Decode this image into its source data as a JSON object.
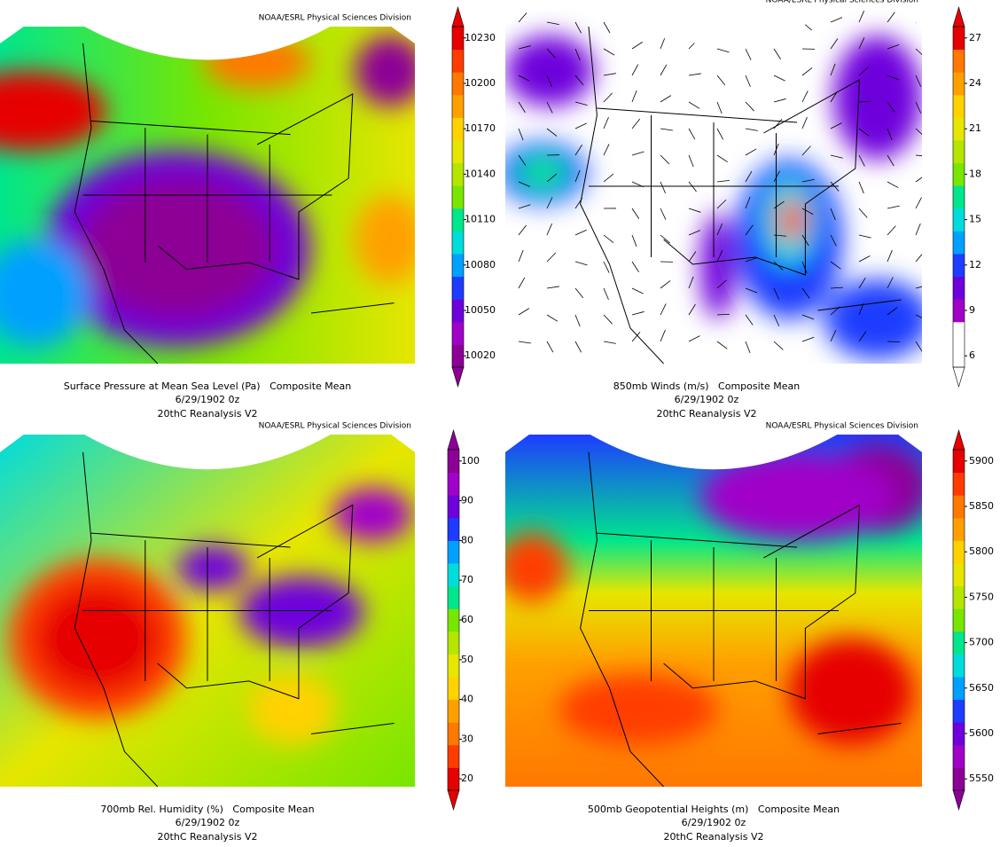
{
  "panels": [
    {
      "credit": "NOAA/ESRL Physical Sciences Division",
      "title": "Surface Pressure at Mean Sea Level (Pa)   Composite Mean",
      "date": "6/29/1902 0z",
      "source": "20thC Reanalysis V2",
      "ticks": [
        10230,
        10200,
        10170,
        10140,
        10110,
        10080,
        10050,
        10020
      ],
      "colors": [
        "#8c0096",
        "#a000c8",
        "#6e00dc",
        "#1e3cff",
        "#00a0ff",
        "#00dcdc",
        "#00e68c",
        "#78e600",
        "#b4e600",
        "#e6e600",
        "#ffd200",
        "#ffa000",
        "#ff7800",
        "#ff3c00",
        "#e60000"
      ]
    },
    {
      "credit": "NOAA/ESRL Physical Sciences Division",
      "title": "850mb Winds (m/s)   Composite Mean",
      "date": "6/29/1902 0z",
      "source": "20thC Reanalysis V2",
      "ticks": [
        27,
        24,
        21,
        18,
        15,
        12,
        9,
        6
      ],
      "colors": [
        "#ffffff",
        "#ffffff",
        "#a000c8",
        "#6e00dc",
        "#1e3cff",
        "#00a0ff",
        "#00dcdc",
        "#00e68c",
        "#78e600",
        "#b4e600",
        "#e6e600",
        "#ffd200",
        "#ffa000",
        "#ff7800",
        "#e60000"
      ]
    },
    {
      "credit": "NOAA/ESRL Physical Sciences Division",
      "title": "700mb Rel. Humidity (%)   Composite Mean",
      "date": "6/29/1902 0z",
      "source": "20thC Reanalysis V2",
      "ticks": [
        100,
        90,
        80,
        70,
        60,
        50,
        40,
        30,
        20
      ],
      "colors": [
        "#e60000",
        "#ff3c00",
        "#ff7800",
        "#ffa000",
        "#ffd200",
        "#e6e600",
        "#b4e600",
        "#78e600",
        "#00e68c",
        "#00dcdc",
        "#00a0ff",
        "#1e3cff",
        "#6e00dc",
        "#a000c8",
        "#8c0096"
      ]
    },
    {
      "credit": "NOAA/ESRL Physical Sciences Division",
      "title": "500mb Geopotential Heights (m)   Composite Mean",
      "date": "6/29/1902 0z",
      "source": "20thC Reanalysis V2",
      "ticks": [
        5900,
        5850,
        5800,
        5750,
        5700,
        5650,
        5600,
        5550
      ],
      "colors": [
        "#8c0096",
        "#a000c8",
        "#6e00dc",
        "#1e3cff",
        "#00a0ff",
        "#00dcdc",
        "#00e68c",
        "#78e600",
        "#b4e600",
        "#e6e600",
        "#ffd200",
        "#ffa000",
        "#ff7800",
        "#ff3c00",
        "#e60000"
      ]
    }
  ]
}
